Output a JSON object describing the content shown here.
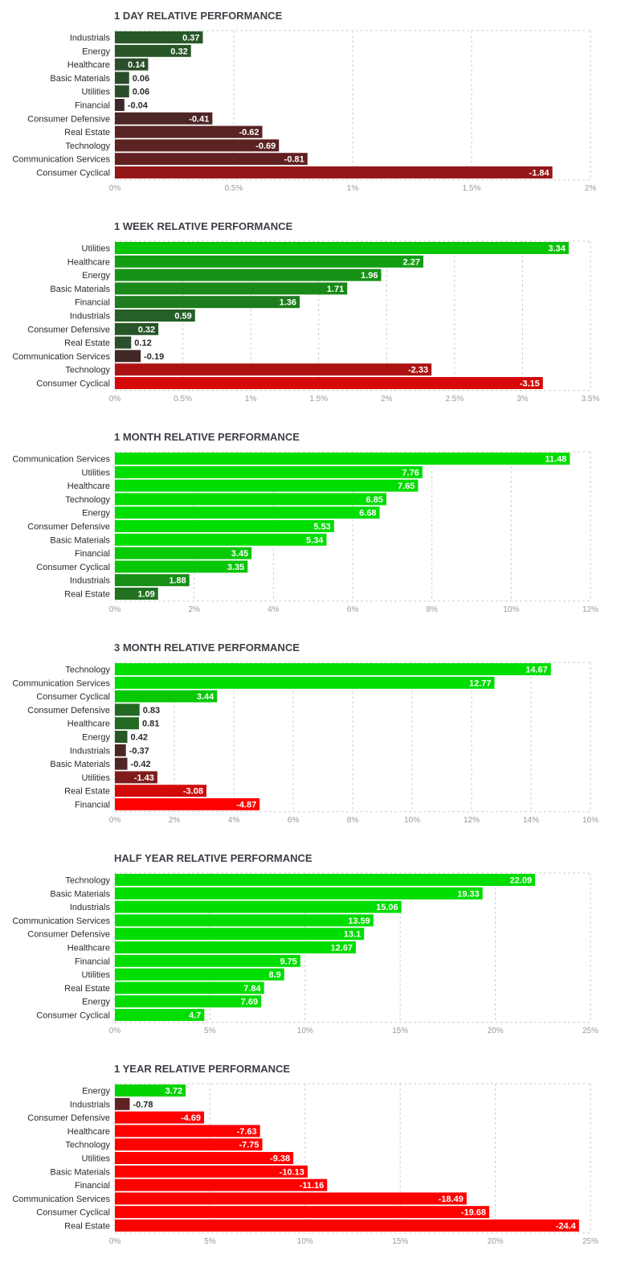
{
  "chart_data": [
    {
      "type": "bar",
      "orientation": "horizontal",
      "title": "1 DAY RELATIVE PERFORMANCE",
      "categories": [
        "Industrials",
        "Energy",
        "Healthcare",
        "Basic Materials",
        "Utilities",
        "Financial",
        "Consumer Defensive",
        "Real Estate",
        "Technology",
        "Communication Services",
        "Consumer Cyclical"
      ],
      "values": [
        0.37,
        0.32,
        0.14,
        0.06,
        0.06,
        -0.04,
        -0.41,
        -0.62,
        -0.69,
        -0.81,
        -1.84
      ],
      "value_labels": [
        "0.37",
        "0.32",
        "0.14",
        "0.06",
        "0.06",
        "-0.04",
        "-0.41",
        "-0.62",
        "-0.69",
        "-0.81",
        "-1.84"
      ],
      "xlim": [
        0,
        2
      ],
      "ticks": [
        0,
        0.5,
        1,
        1.5,
        2
      ],
      "tick_labels": [
        "0%",
        "0.5%",
        "1%",
        "1.5%",
        "2%"
      ],
      "bar_length_basis": "absolute value"
    },
    {
      "type": "bar",
      "orientation": "horizontal",
      "title": "1 WEEK RELATIVE PERFORMANCE",
      "categories": [
        "Utilities",
        "Healthcare",
        "Energy",
        "Basic Materials",
        "Financial",
        "Industrials",
        "Consumer Defensive",
        "Real Estate",
        "Communication Services",
        "Technology",
        "Consumer Cyclical"
      ],
      "values": [
        3.34,
        2.27,
        1.96,
        1.71,
        1.36,
        0.59,
        0.32,
        0.12,
        -0.19,
        -2.33,
        -3.15
      ],
      "value_labels": [
        "3.34",
        "2.27",
        "1.96",
        "1.71",
        "1.36",
        "0.59",
        "0.32",
        "0.12",
        "-0.19",
        "-2.33",
        "-3.15"
      ],
      "xlim": [
        0,
        3.5
      ],
      "ticks": [
        0,
        0.5,
        1,
        1.5,
        2,
        2.5,
        3,
        3.5
      ],
      "tick_labels": [
        "0%",
        "0.5%",
        "1%",
        "1.5%",
        "2%",
        "2.5%",
        "3%",
        "3.5%"
      ],
      "bar_length_basis": "absolute value"
    },
    {
      "type": "bar",
      "orientation": "horizontal",
      "title": "1 MONTH RELATIVE PERFORMANCE",
      "categories": [
        "Communication Services",
        "Utilities",
        "Healthcare",
        "Technology",
        "Energy",
        "Consumer Defensive",
        "Basic Materials",
        "Financial",
        "Consumer Cyclical",
        "Industrials",
        "Real Estate"
      ],
      "values": [
        11.48,
        7.76,
        7.65,
        6.85,
        6.68,
        5.53,
        5.34,
        3.45,
        3.35,
        1.88,
        1.09
      ],
      "value_labels": [
        "11.48",
        "7.76",
        "7.65",
        "6.85",
        "6.68",
        "5.53",
        "5.34",
        "3.45",
        "3.35",
        "1.88",
        "1.09"
      ],
      "xlim": [
        0,
        12
      ],
      "ticks": [
        0,
        2,
        4,
        6,
        8,
        10,
        12
      ],
      "tick_labels": [
        "0%",
        "2%",
        "4%",
        "6%",
        "8%",
        "10%",
        "12%"
      ],
      "bar_length_basis": "absolute value"
    },
    {
      "type": "bar",
      "orientation": "horizontal",
      "title": "3 MONTH RELATIVE PERFORMANCE",
      "categories": [
        "Technology",
        "Communication Services",
        "Consumer Cyclical",
        "Consumer Defensive",
        "Healthcare",
        "Energy",
        "Industrials",
        "Basic Materials",
        "Utilities",
        "Real Estate",
        "Financial"
      ],
      "values": [
        14.67,
        12.77,
        3.44,
        0.83,
        0.81,
        0.42,
        -0.37,
        -0.42,
        -1.43,
        -3.08,
        -4.87
      ],
      "value_labels": [
        "14.67",
        "12.77",
        "3.44",
        "0.83",
        "0.81",
        "0.42",
        "-0.37",
        "-0.42",
        "-1.43",
        "-3.08",
        "-4.87"
      ],
      "xlim": [
        0,
        16
      ],
      "ticks": [
        0,
        2,
        4,
        6,
        8,
        10,
        12,
        14,
        16
      ],
      "tick_labels": [
        "0%",
        "2%",
        "4%",
        "6%",
        "8%",
        "10%",
        "12%",
        "14%",
        "16%"
      ],
      "bar_length_basis": "absolute value"
    },
    {
      "type": "bar",
      "orientation": "horizontal",
      "title": "HALF YEAR RELATIVE PERFORMANCE",
      "categories": [
        "Technology",
        "Basic Materials",
        "Industrials",
        "Communication Services",
        "Consumer Defensive",
        "Healthcare",
        "Financial",
        "Utilities",
        "Real Estate",
        "Energy",
        "Consumer Cyclical"
      ],
      "values": [
        22.09,
        19.33,
        15.06,
        13.59,
        13.1,
        12.67,
        9.75,
        8.9,
        7.84,
        7.69,
        4.7
      ],
      "value_labels": [
        "22.09",
        "19.33",
        "15.06",
        "13.59",
        "13.1",
        "12.67",
        "9.75",
        "8.9",
        "7.84",
        "7.69",
        "4.7"
      ],
      "xlim": [
        0,
        25
      ],
      "ticks": [
        0,
        5,
        10,
        15,
        20,
        25
      ],
      "tick_labels": [
        "0%",
        "5%",
        "10%",
        "15%",
        "20%",
        "25%"
      ],
      "bar_length_basis": "absolute value"
    },
    {
      "type": "bar",
      "orientation": "horizontal",
      "title": "1 YEAR RELATIVE PERFORMANCE",
      "categories": [
        "Energy",
        "Industrials",
        "Consumer Defensive",
        "Healthcare",
        "Technology",
        "Utilities",
        "Basic Materials",
        "Financial",
        "Communication Services",
        "Consumer Cyclical",
        "Real Estate"
      ],
      "values": [
        3.72,
        -0.78,
        -4.69,
        -7.63,
        -7.75,
        -9.38,
        -10.13,
        -11.16,
        -18.49,
        -19.68,
        -24.4
      ],
      "value_labels": [
        "3.72",
        "-0.78",
        "-4.69",
        "-7.63",
        "-7.75",
        "-9.38",
        "-10.13",
        "-11.16",
        "-18.49",
        "-19.68",
        "-24.4"
      ],
      "xlim": [
        0,
        25
      ],
      "ticks": [
        0,
        5,
        10,
        15,
        20,
        25
      ],
      "tick_labels": [
        "0%",
        "5%",
        "10%",
        "15%",
        "20%",
        "25%"
      ],
      "bar_length_basis": "absolute value"
    }
  ],
  "colors": {
    "positive_strong": "#00dd00",
    "positive_weak": "#2c4a2c",
    "negative_strong": "#ff0000",
    "negative_weak": "#3a2a2a",
    "grid": "#cfcfcf",
    "tick_text": "#999999",
    "label_text": "#2a2a2a",
    "title_text": "#3c3f46"
  }
}
